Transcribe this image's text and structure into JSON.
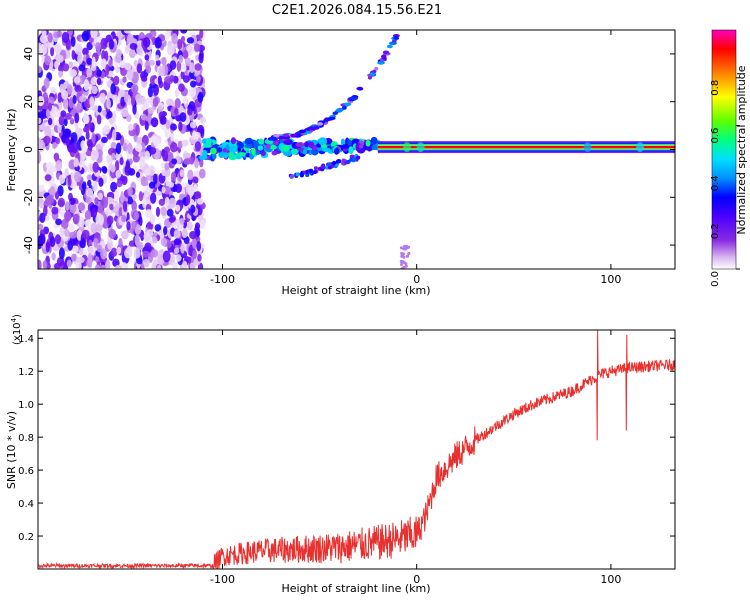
{
  "title": "C2E1.2026.084.15.56.E21",
  "chart_data": [
    {
      "type": "heatmap",
      "title": "C2E1.2026.084.15.56.E21",
      "xlabel": "Height of straight line (km)",
      "ylabel": "Frequency (Hz)",
      "xlim": [
        -195,
        133
      ],
      "ylim": [
        -50,
        50
      ],
      "x_ticks": [
        -100,
        0,
        100
      ],
      "y_ticks": [
        -40,
        -20,
        0,
        20,
        40
      ],
      "colorbar": {
        "label": "Normalized spectral amplitude",
        "range": [
          0,
          1
        ],
        "ticks": [
          "0.0",
          "0.2",
          "0.4",
          "0.6",
          "0.8"
        ],
        "colors": [
          "#ffffff",
          "#d8b4f0",
          "#8a2be2",
          "#4b00ff",
          "#0000ff",
          "#0090ff",
          "#00e0ff",
          "#00ff80",
          "#60ff00",
          "#ffff00",
          "#ff8000",
          "#ff0000",
          "#ff00c0"
        ]
      },
      "regions": {
        "noise_band_x": [
          -195,
          -110
        ],
        "dominant_line": {
          "x": [
            -20,
            133
          ],
          "frequency": 1,
          "amplitude": 0.95
        },
        "upper_branch": {
          "x": [
            -75,
            -10
          ],
          "frequency": [
            5,
            48
          ]
        },
        "lower_branch": {
          "x": [
            -60,
            -35
          ],
          "frequency": [
            -12,
            -3
          ]
        }
      }
    },
    {
      "type": "line",
      "xlabel": "Height of straight line (km)",
      "ylabel": "SNR (10 * v/v)",
      "scale_label": "(x10",
      "scale_exp": "4",
      "xlim": [
        -195,
        133
      ],
      "ylim": [
        0,
        1.45
      ],
      "x_ticks": [
        -100,
        0,
        100
      ],
      "y_ticks": [
        "0.2",
        "0.4",
        "0.6",
        "0.8",
        "1.0",
        "1.2",
        "1.4"
      ],
      "series": [
        {
          "name": "SNR",
          "color": "#e8302e",
          "x": [
            -195,
            -105,
            -100,
            -80,
            -60,
            -40,
            -20,
            -10,
            0,
            5,
            10,
            20,
            30,
            40,
            50,
            60,
            70,
            80,
            90,
            95,
            100,
            110,
            120,
            133
          ],
          "y": [
            0.02,
            0.02,
            0.08,
            0.11,
            0.12,
            0.13,
            0.16,
            0.18,
            0.21,
            0.33,
            0.55,
            0.68,
            0.78,
            0.86,
            0.94,
            1.0,
            1.04,
            1.08,
            1.15,
            1.18,
            1.2,
            1.22,
            1.23,
            1.24
          ]
        }
      ],
      "spikes": [
        {
          "x": 93,
          "min": 0.78,
          "max": 1.45
        },
        {
          "x": 108,
          "min": 0.84,
          "max": 1.42
        }
      ]
    }
  ]
}
